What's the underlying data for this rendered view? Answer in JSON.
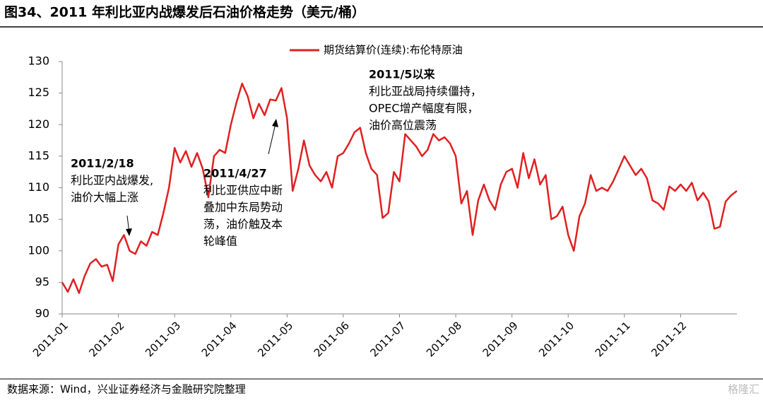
{
  "chart_data": {
    "type": "line",
    "title": "图34、2011 年利比亚内战爆发后石油价格走势（美元/桶）",
    "source": "数据来源：Wind，兴业证券经济与金融研究院整理",
    "watermark": "格隆汇",
    "categories": [
      "2011-01",
      null,
      null,
      null,
      null,
      null,
      null,
      null,
      null,
      null,
      "2011-02",
      null,
      null,
      null,
      null,
      null,
      null,
      null,
      null,
      null,
      "2011-03",
      null,
      null,
      null,
      null,
      null,
      null,
      null,
      null,
      null,
      "2011-04",
      null,
      null,
      null,
      null,
      null,
      null,
      null,
      null,
      null,
      "2011-05",
      null,
      null,
      null,
      null,
      null,
      null,
      null,
      null,
      null,
      "2011-06",
      null,
      null,
      null,
      null,
      null,
      null,
      null,
      null,
      null,
      "2011-07",
      null,
      null,
      null,
      null,
      null,
      null,
      null,
      null,
      null,
      "2011-08",
      null,
      null,
      null,
      null,
      null,
      null,
      null,
      null,
      null,
      "2011-09",
      null,
      null,
      null,
      null,
      null,
      null,
      null,
      null,
      null,
      "2011-10",
      null,
      null,
      null,
      null,
      null,
      null,
      null,
      null,
      null,
      "2011-11",
      null,
      null,
      null,
      null,
      null,
      null,
      null,
      null,
      null,
      "2011-12",
      null,
      null,
      null,
      null,
      null,
      null,
      null,
      null,
      null,
      null
    ],
    "series": [
      {
        "name": "期货结算价(连续):布伦特原油",
        "color": "#e02020",
        "values": [
          95,
          93.5,
          95.5,
          93.3,
          96,
          98,
          98.7,
          97.5,
          97.8,
          95.2,
          101,
          102.5,
          100,
          99.5,
          101.5,
          100.8,
          103,
          102.5,
          106,
          110,
          116.3,
          114,
          115.8,
          113.3,
          115.5,
          113,
          108.5,
          115,
          116,
          115.5,
          120,
          123.5,
          126.5,
          124.5,
          121,
          123.3,
          121.5,
          124,
          123.8,
          125.8,
          121,
          109.5,
          113,
          117.5,
          113.5,
          112,
          111,
          112.5,
          110,
          115,
          115.5,
          117,
          118.8,
          119.5,
          115.5,
          113,
          112,
          105.2,
          106,
          112.5,
          111,
          118.5,
          117.5,
          116.5,
          115,
          116,
          118.5,
          117.5,
          118,
          117,
          115,
          107.5,
          109.5,
          102.5,
          108,
          110.5,
          108,
          106.5,
          110.5,
          112.5,
          113,
          110,
          115.5,
          111.5,
          114.5,
          110.5,
          112,
          105,
          105.5,
          107,
          102.5,
          100,
          105.5,
          107.5,
          112,
          109.5,
          110,
          109.5,
          111,
          113,
          115,
          113.5,
          112,
          113,
          111.5,
          108,
          107.5,
          106.5,
          110.2,
          109.5,
          110.5,
          109.5,
          110.8,
          108,
          109.2,
          107.8,
          103.5,
          103.8,
          107.8,
          108.8,
          109.5
        ]
      }
    ],
    "ylim": [
      90,
      130
    ],
    "yticks": [
      90,
      95,
      100,
      105,
      110,
      115,
      120,
      125,
      130
    ],
    "legend": "top",
    "annotations": [
      {
        "title": "2011/2/18",
        "lines": [
          "利比亚内战爆发,",
          "油价大幅上涨"
        ]
      },
      {
        "title": "2011/4/27",
        "lines": [
          "利比亚供应中断",
          "叠加中东局势动",
          "荡，油价触及本",
          "轮峰值"
        ]
      },
      {
        "title": "2011/5以来",
        "lines": [
          "利比亚战局持续僵持，",
          "OPEC增产幅度有限，",
          "油价高位震荡"
        ]
      }
    ]
  }
}
